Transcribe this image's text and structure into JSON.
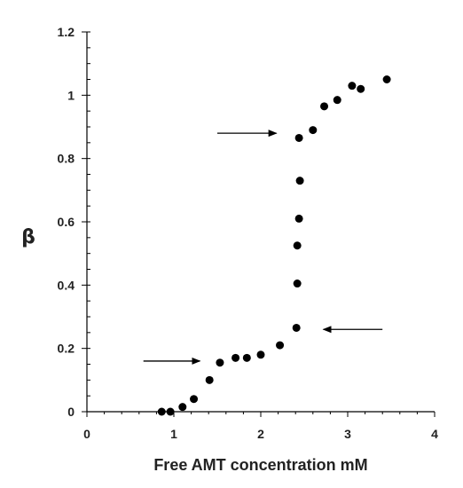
{
  "chart_data": {
    "type": "scatter",
    "title": "",
    "xlabel": "Free AMT concentration mM",
    "ylabel": "β",
    "xlim": [
      0,
      4
    ],
    "ylim": [
      0,
      1.2
    ],
    "x_ticks": [
      "0",
      "1",
      "2",
      "3",
      "4"
    ],
    "y_ticks": [
      "0",
      "0.2",
      "0.4",
      "0.6",
      "0.8",
      "1",
      "1.2"
    ],
    "grid": false,
    "series": [
      {
        "points": [
          [
            0.86,
            0.0
          ],
          [
            0.96,
            0.0
          ],
          [
            1.1,
            0.015
          ],
          [
            1.23,
            0.04
          ],
          [
            1.41,
            0.1
          ],
          [
            1.53,
            0.155
          ],
          [
            1.71,
            0.17
          ],
          [
            1.84,
            0.17
          ],
          [
            2.0,
            0.18
          ],
          [
            2.22,
            0.21
          ],
          [
            2.41,
            0.265
          ],
          [
            2.42,
            0.405
          ],
          [
            2.42,
            0.525
          ],
          [
            2.44,
            0.61
          ],
          [
            2.45,
            0.73
          ],
          [
            2.44,
            0.865
          ],
          [
            2.6,
            0.89
          ],
          [
            2.73,
            0.965
          ],
          [
            2.88,
            0.985
          ],
          [
            3.05,
            1.03
          ],
          [
            3.15,
            1.02
          ],
          [
            3.45,
            1.05
          ]
        ]
      }
    ],
    "annotations": [
      {
        "type": "arrow",
        "from": [
          0.65,
          0.16
        ],
        "to": [
          1.3,
          0.16
        ]
      },
      {
        "type": "arrow",
        "from": [
          3.4,
          0.26
        ],
        "to": [
          2.72,
          0.26
        ]
      },
      {
        "type": "arrow",
        "from": [
          1.5,
          0.88
        ],
        "to": [
          2.18,
          0.88
        ]
      }
    ],
    "marker_color": "#000000"
  }
}
